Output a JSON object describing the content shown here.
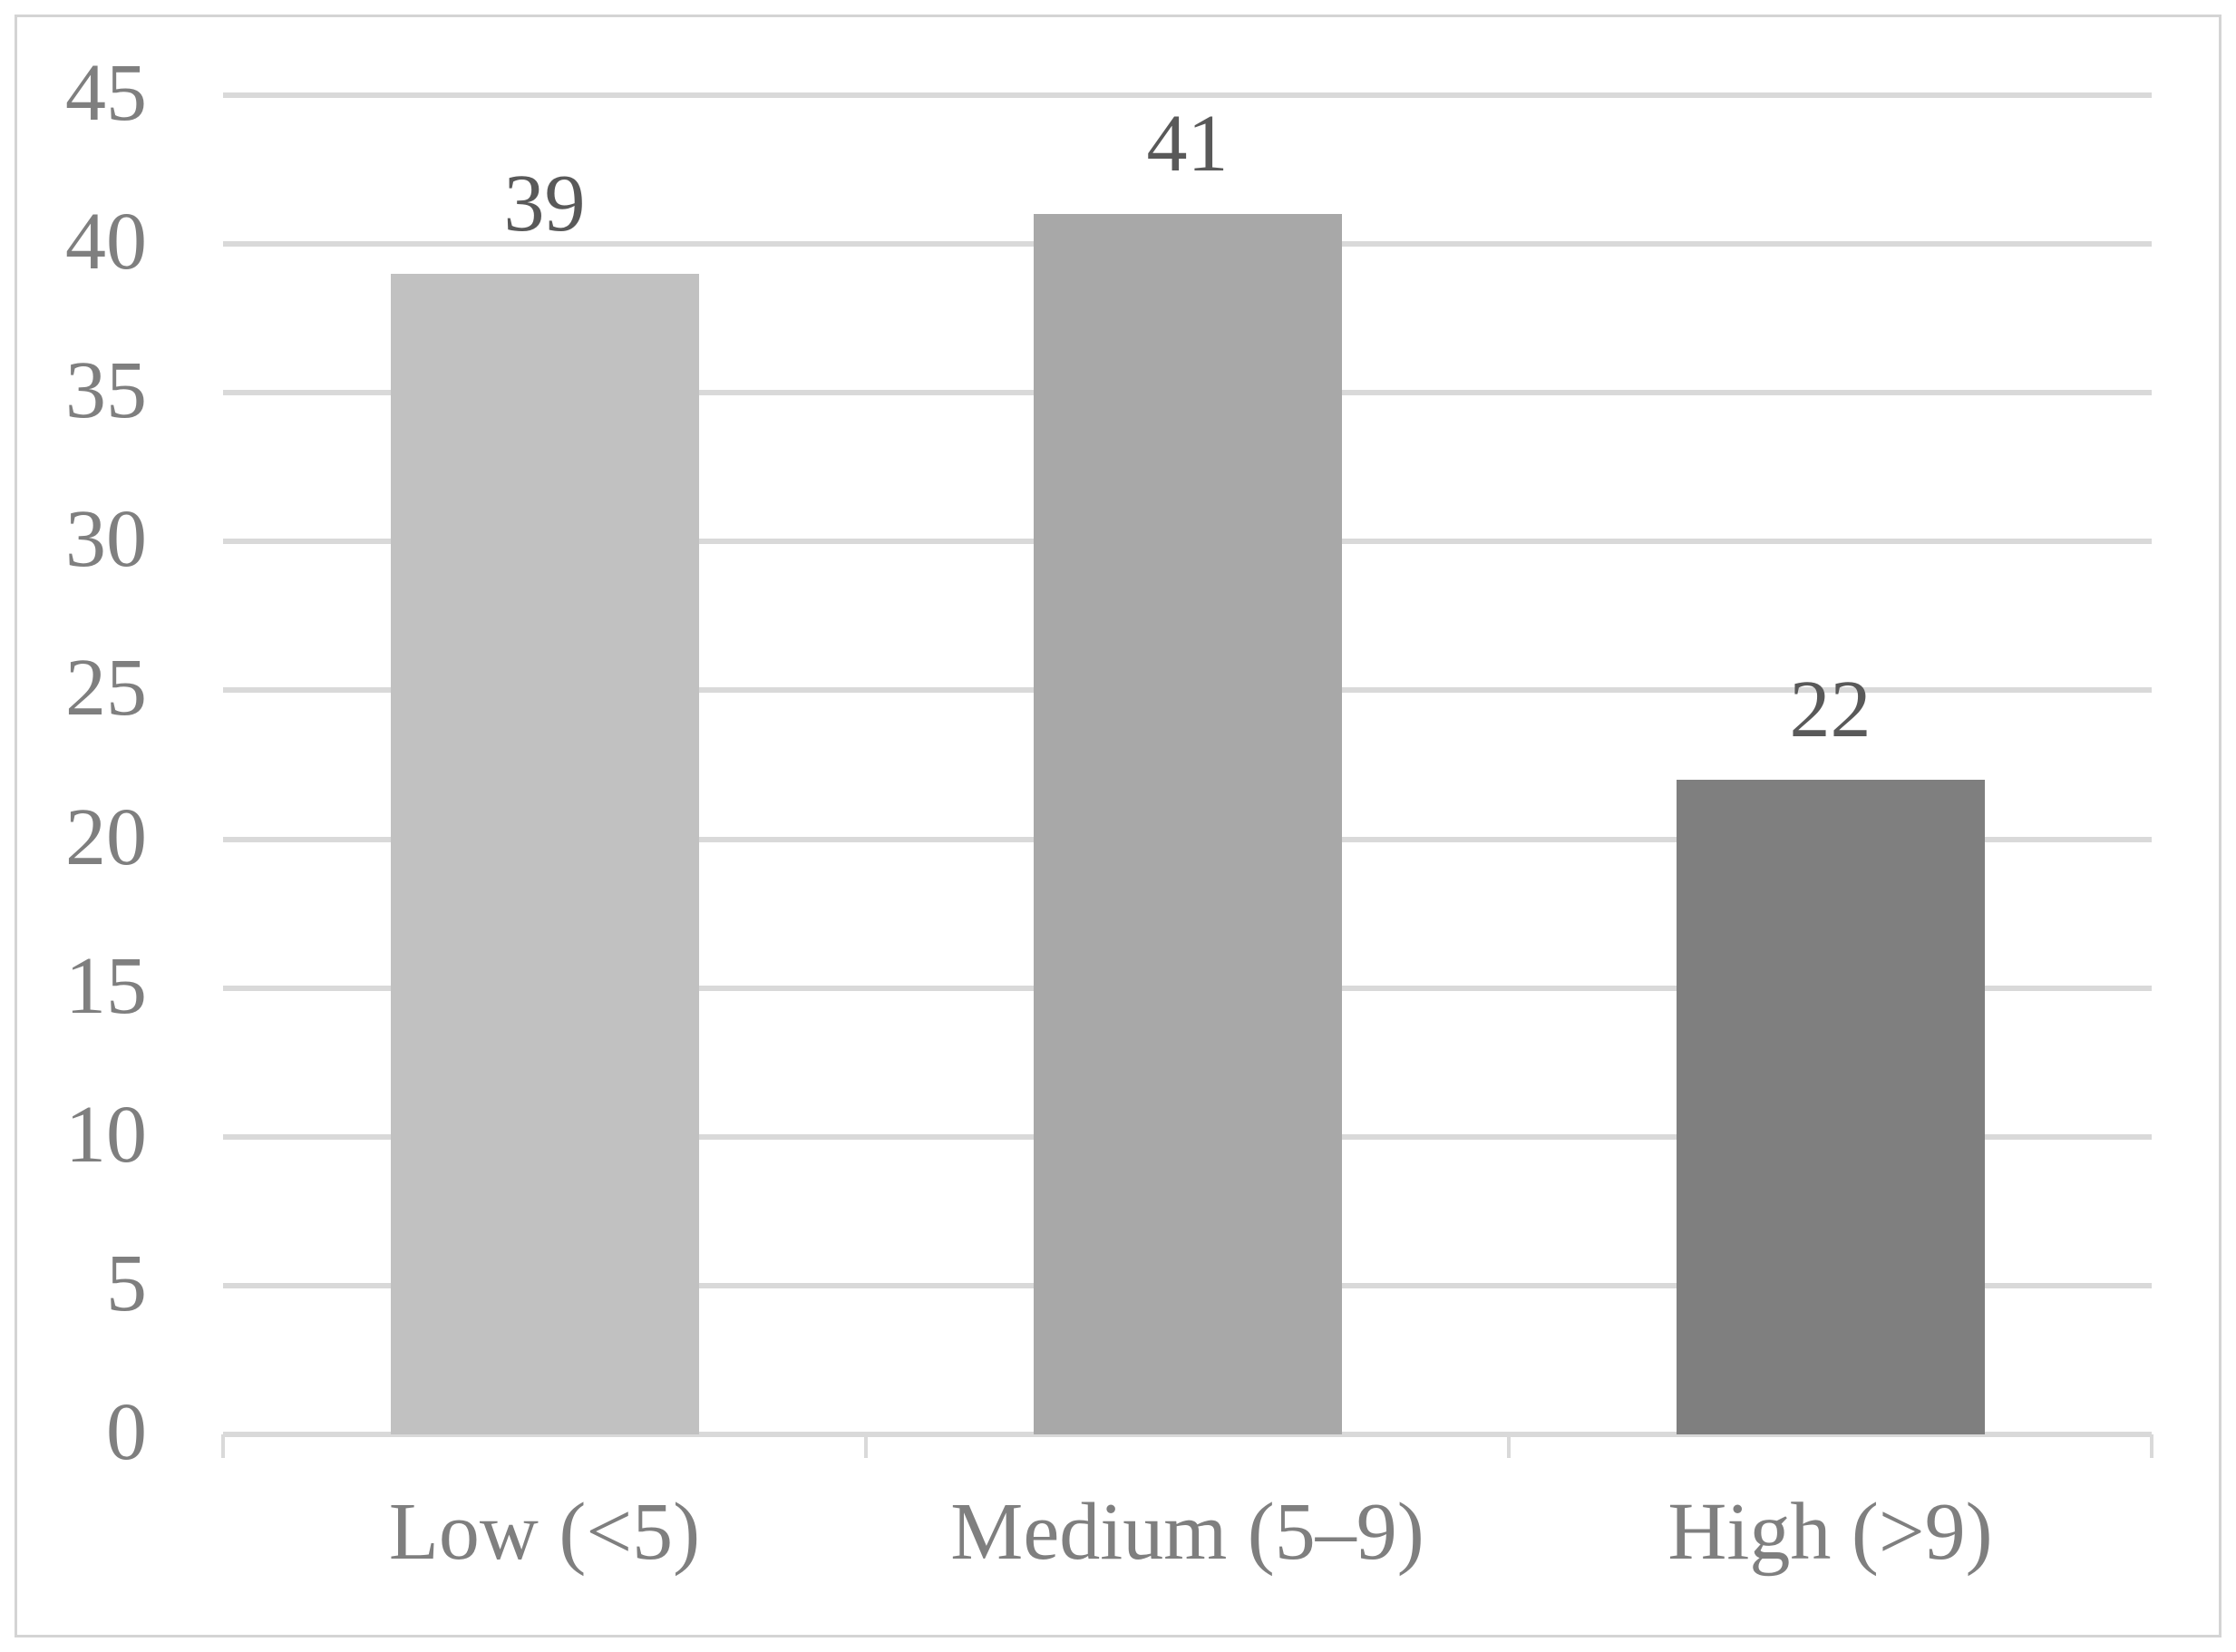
{
  "chart_data": {
    "type": "bar",
    "categories": [
      "Low (<5)",
      "Medium (5–9)",
      "High (>9)"
    ],
    "values": [
      39,
      41,
      22
    ],
    "data_labels": [
      "39",
      "41",
      "22"
    ],
    "series": [
      {
        "name": "",
        "values": [
          39,
          41,
          22
        ]
      }
    ],
    "title": "",
    "xlabel": "",
    "ylabel": "",
    "ylim": [
      0,
      45
    ],
    "yticks": [
      0,
      5,
      10,
      15,
      20,
      25,
      30,
      35,
      40,
      45
    ],
    "grid": true,
    "legend_position": "none",
    "colors": {
      "bar_fills": [
        "#c1c1c1",
        "#a8a8a8",
        "#7f7f7f"
      ],
      "gridline": "#d9d9d9",
      "axis_line": "#d9d9d9",
      "axis_text": "#7f7f7f",
      "data_label_text": "#595959",
      "border": "#d4d4d4",
      "background": "#ffffff"
    }
  }
}
